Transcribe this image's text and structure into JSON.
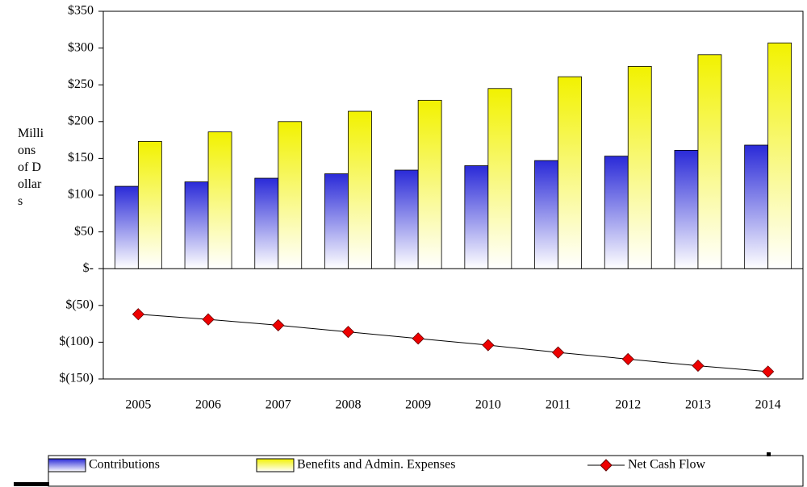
{
  "chart_data": {
    "type": "bar-line",
    "y_label": "Millions of Dollars",
    "categories": [
      "2005",
      "2006",
      "2007",
      "2008",
      "2009",
      "2010",
      "2011",
      "2012",
      "2013",
      "2014"
    ],
    "series": [
      {
        "name": "Contributions",
        "type": "bar",
        "color": "#2a2ad8",
        "values": [
          112,
          118,
          123,
          129,
          134,
          140,
          147,
          153,
          161,
          168
        ]
      },
      {
        "name": "Benefits and Admin. Expenses",
        "type": "bar",
        "color": "#f2f200",
        "values": [
          173,
          186,
          200,
          214,
          229,
          245,
          261,
          275,
          291,
          307
        ]
      },
      {
        "name": "Net Cash Flow",
        "type": "line",
        "color": "#ee0000",
        "values": [
          -62,
          -69,
          -77,
          -86,
          -95,
          -104,
          -114,
          -123,
          -132,
          -140
        ]
      }
    ],
    "ylim": [
      -150,
      350
    ],
    "yticks": [
      {
        "value": -150,
        "label": "$(150)"
      },
      {
        "value": -100,
        "label": "$(100)"
      },
      {
        "value": -50,
        "label": "$(50)"
      },
      {
        "value": 0,
        "label": "$-"
      },
      {
        "value": 50,
        "label": "$50"
      },
      {
        "value": 100,
        "label": "$100"
      },
      {
        "value": 150,
        "label": "$150"
      },
      {
        "value": 200,
        "label": "$200"
      },
      {
        "value": 250,
        "label": "$250"
      },
      {
        "value": 300,
        "label": "$300"
      },
      {
        "value": 350,
        "label": "$350"
      }
    ],
    "legend": "bottom"
  }
}
